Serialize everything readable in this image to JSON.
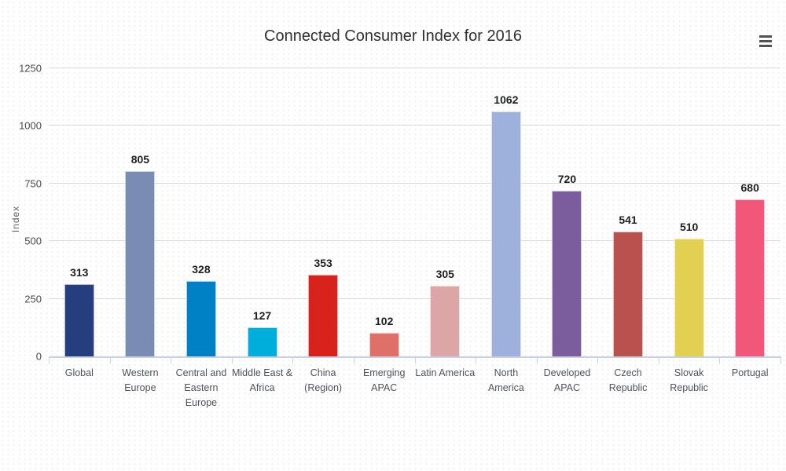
{
  "header": {
    "title": "Connected Consumer Index for 2016"
  },
  "toolbar": {
    "context_menu_icon": "hamburger-menu",
    "context_menu_tooltip": "Chart context menu"
  },
  "chart_data": {
    "type": "bar",
    "title": "Connected Consumer Index for 2016",
    "xlabel": "",
    "ylabel": "Index",
    "ylim": [
      0,
      1250
    ],
    "yticks": [
      0,
      250,
      500,
      750,
      1000,
      1250
    ],
    "grid": true,
    "legend": false,
    "data_labels": true,
    "categories": [
      "Global",
      "Western\nEurope",
      "Central and\nEastern\nEurope",
      "Middle East &\nAfrica",
      "China\n(Region)",
      "Emerging\nAPAC",
      "Latin America",
      "North\nAmerica",
      "Developed\nAPAC",
      "Czech\nRepublic",
      "Slovak\nRepublic",
      "Portugal"
    ],
    "values": [
      313,
      805,
      328,
      127,
      353,
      102,
      305,
      1062,
      720,
      541,
      510,
      680
    ],
    "colors": [
      "#253E7D",
      "#7A8CB2",
      "#0081C6",
      "#00AEDB",
      "#D8231C",
      "#DF7068",
      "#DCA6A7",
      "#9DB1DC",
      "#7B5C9D",
      "#B9514E",
      "#E2D050",
      "#F05778"
    ],
    "axis_line_color": "#C7D0E8",
    "grid_color": "#DBDBDB"
  }
}
